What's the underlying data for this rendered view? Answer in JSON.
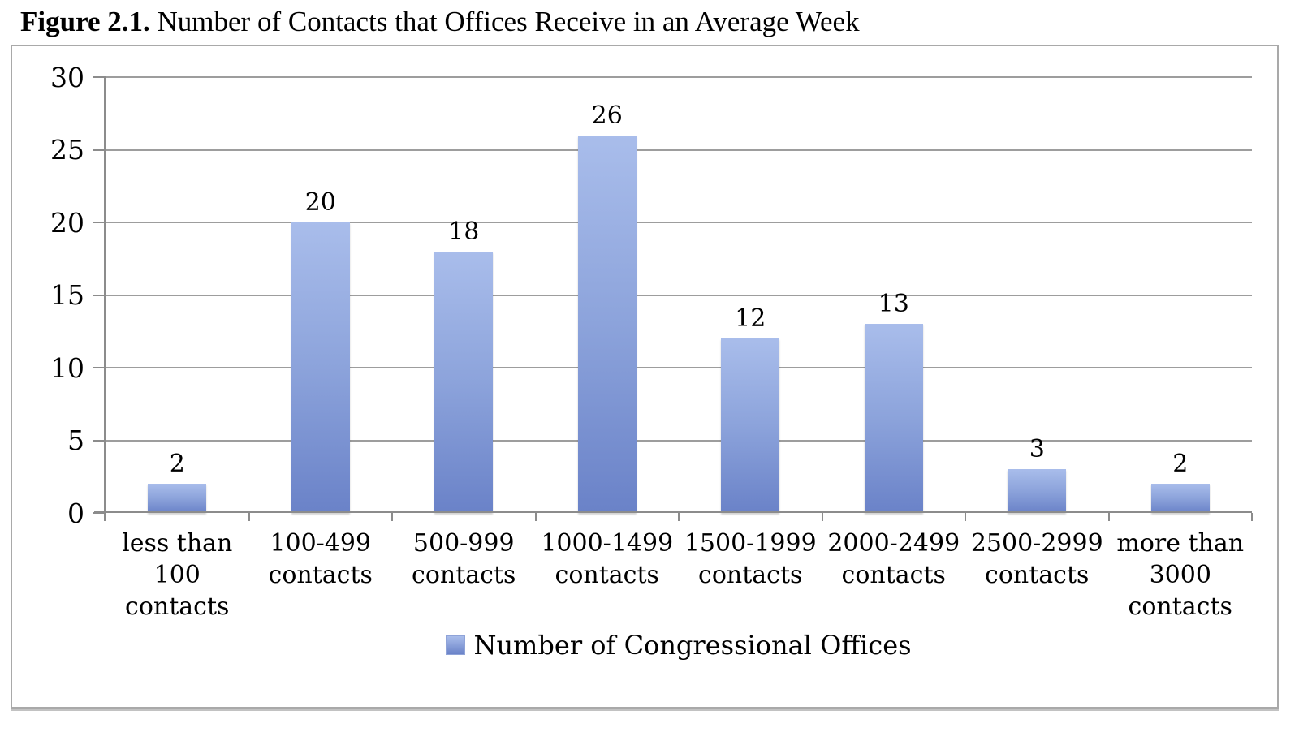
{
  "title": {
    "prefix": "Figure 2.1.",
    "caption": " Number of Contacts that Offices Receive in an Average Week"
  },
  "legend": {
    "label": "Number of Congressional Offices"
  },
  "colors": {
    "bar_top": "#a9bdeb",
    "bar_bottom": "#6a82c8",
    "gridline": "#9d9d9d",
    "axis": "#8c8c8c",
    "frame_border": "#a9a9a9",
    "text": "#000000"
  },
  "chart_data": {
    "type": "bar",
    "title": "Figure 2.1. Number of Contacts that Offices Receive in an Average Week",
    "categories": [
      "less than\n100\ncontacts",
      "100-499\ncontacts",
      "500-999\ncontacts",
      "1000-1499\ncontacts",
      "1500-1999\ncontacts",
      "2000-2499\ncontacts",
      "2500-2999\ncontacts",
      "more than\n3000\ncontacts"
    ],
    "values": [
      2,
      20,
      18,
      26,
      12,
      13,
      3,
      2
    ],
    "series": [
      {
        "name": "Number of Congressional Offices",
        "values": [
          2,
          20,
          18,
          26,
          12,
          13,
          3,
          2
        ]
      }
    ],
    "xlabel": "",
    "ylabel": "",
    "ylim": [
      0,
      30
    ],
    "y_ticks": [
      0,
      5,
      10,
      15,
      20,
      25,
      30
    ],
    "grid": true,
    "legend_entries": [
      "Number of Congressional Offices"
    ],
    "legend_position": "bottom"
  }
}
